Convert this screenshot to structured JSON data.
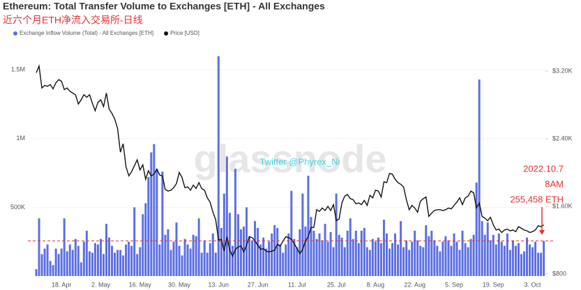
{
  "chart_data": {
    "type": "bar",
    "title": "Ethereum: Total Transfer Volume to Exchanges [ETH] - All Exchanges",
    "subtitle": "近六个月ETH净流入交易所-日线",
    "watermark": "glassnode",
    "credit": "Twitter @Phyrex_Ni",
    "annotation": {
      "lines": [
        "2022.10.7",
        "8AM",
        "255,458 ETH"
      ],
      "color": "#e8312f"
    },
    "x": [
      null,
      null,
      null,
      null,
      null,
      null,
      null,
      null,
      null,
      "18. Apr",
      null,
      null,
      null,
      null,
      null,
      null,
      null,
      null,
      null,
      null,
      null,
      null,
      null,
      "2. May",
      null,
      null,
      null,
      null,
      null,
      null,
      null,
      null,
      null,
      null,
      null,
      null,
      null,
      "16. May",
      null,
      null,
      null,
      null,
      null,
      null,
      null,
      null,
      null,
      null,
      null,
      null,
      null,
      "30. May",
      null,
      null,
      null,
      null,
      null,
      null,
      null,
      null,
      null,
      null,
      null,
      null,
      null,
      "13. Jun",
      null,
      null,
      null,
      null,
      null,
      null,
      null,
      null,
      null,
      null,
      null,
      null,
      null,
      "27. Jun",
      null,
      null,
      null,
      null,
      null,
      null,
      null,
      null,
      null,
      null,
      null,
      null,
      null,
      "11. Jul",
      null,
      null,
      null,
      null,
      null,
      null,
      null,
      null,
      null,
      null,
      null,
      null,
      null,
      "25. Jul",
      null,
      null,
      null,
      null,
      null,
      null,
      null,
      null,
      null,
      null,
      null,
      null,
      null,
      "8. Aug",
      null,
      null,
      null,
      null,
      null,
      null,
      null,
      null,
      null,
      null,
      null,
      null,
      null,
      "22. Aug",
      null,
      null,
      null,
      null,
      null,
      null,
      null,
      null,
      null,
      null,
      null,
      null,
      null,
      "5. Sep",
      null,
      null,
      null,
      null,
      null,
      null,
      null,
      null,
      null,
      null,
      null,
      null,
      null,
      "19. Sep",
      null,
      null,
      null,
      null,
      null,
      null,
      null,
      null,
      null,
      null,
      null,
      null,
      null,
      "3. Oct",
      null,
      null,
      null,
      null
    ],
    "series": [
      {
        "name": "Exchange Inflow Volume (Total) - All Exchanges [ETH]",
        "type": "bar",
        "color": "#5d6fe3",
        "values": [
          50000,
          420000,
          160000,
          200000,
          230000,
          110000,
          80000,
          200000,
          160000,
          200000,
          420000,
          180000,
          230000,
          190000,
          270000,
          220000,
          100000,
          250000,
          330000,
          180000,
          170000,
          240000,
          230000,
          270000,
          160000,
          380000,
          280000,
          220000,
          170000,
          190000,
          190000,
          150000,
          230000,
          250000,
          220000,
          500000,
          160000,
          210000,
          450000,
          530000,
          720000,
          900000,
          960000,
          780000,
          230000,
          760000,
          300000,
          340000,
          190000,
          250000,
          390000,
          220000,
          150000,
          270000,
          230000,
          200000,
          300000,
          290000,
          420000,
          170000,
          260000,
          170000,
          240000,
          310000,
          170000,
          1600000,
          350000,
          600000,
          870000,
          460000,
          220000,
          780000,
          450000,
          340000,
          360000,
          500000,
          290000,
          260000,
          400000,
          350000,
          230000,
          280000,
          200000,
          250000,
          310000,
          370000,
          350000,
          230000,
          170000,
          230000,
          310000,
          620000,
          270000,
          210000,
          340000,
          600000,
          360000,
          730000,
          430000,
          330000,
          270000,
          310000,
          260000,
          380000,
          250000,
          320000,
          210000,
          600000,
          300000,
          280000,
          210000,
          330000,
          420000,
          270000,
          330000,
          240000,
          330000,
          350000,
          210000,
          190000,
          270000,
          250000,
          280000,
          240000,
          410000,
          310000,
          200000,
          240000,
          310000,
          230000,
          400000,
          210000,
          260000,
          190000,
          250000,
          330000,
          260000,
          220000,
          210000,
          370000,
          290000,
          330000,
          260000,
          220000,
          180000,
          250000,
          290000,
          260000,
          220000,
          310000,
          250000,
          190000,
          330000,
          240000,
          210000,
          270000,
          300000,
          680000,
          1430000,
          400000,
          300000,
          390000,
          260000,
          300000,
          230000,
          310000,
          250000,
          220000,
          310000,
          190000,
          260000,
          220000,
          240000,
          160000,
          180000,
          280000,
          230000,
          210000,
          250000,
          170000,
          170000,
          255458
        ]
      },
      {
        "name": "Price [USD]",
        "type": "line",
        "axis": "y2",
        "color": "#111111",
        "values": [
          3180,
          3260,
          3000,
          3030,
          3020,
          3040,
          2990,
          3060,
          3100,
          3080,
          2980,
          3000,
          2960,
          2940,
          2920,
          2810,
          2860,
          2920,
          2890,
          2920,
          2820,
          2730,
          2830,
          2860,
          2780,
          2940,
          2750,
          2700,
          2630,
          2520,
          2240,
          2340,
          2070,
          1960,
          2010,
          2080,
          2150,
          2030,
          2090,
          1920,
          2020,
          1960,
          1980,
          2040,
          1970,
          1960,
          1800,
          1780,
          1790,
          1820,
          1870,
          2000,
          1940,
          1820,
          1830,
          1790,
          1850,
          1810,
          1880,
          1810,
          1790,
          1700,
          1650,
          1530,
          1440,
          1200,
          1210,
          1070,
          1240,
          1080,
          1010,
          1090,
          1120,
          1130,
          1060,
          1140,
          1240,
          1230,
          1190,
          1140,
          1090,
          1100,
          1070,
          1060,
          1070,
          1080,
          1150,
          1130,
          1190,
          1240,
          1230,
          1210,
          1160,
          1100,
          1040,
          1090,
          1190,
          1240,
          1350,
          1350,
          1560,
          1540,
          1580,
          1550,
          1600,
          1550,
          1620,
          1430,
          1450,
          1640,
          1720,
          1740,
          1690,
          1680,
          1630,
          1640,
          1620,
          1670,
          1610,
          1730,
          1700,
          1790,
          1780,
          1710,
          1890,
          1880,
          1990,
          1980,
          1920,
          1880,
          1860,
          1830,
          1680,
          1560,
          1610,
          1580,
          1530,
          1660,
          1690,
          1710,
          1480,
          1520,
          1550,
          1560,
          1560,
          1550,
          1560,
          1580,
          1570,
          1610,
          1650,
          1700,
          1620,
          1700,
          1720,
          1780,
          1760,
          1580,
          1640,
          1480,
          1460,
          1430,
          1470,
          1380,
          1320,
          1330,
          1290,
          1320,
          1330,
          1310,
          1320,
          1300,
          1360,
          1340,
          1320,
          1310,
          1290,
          1300,
          1320,
          1370,
          1360,
          1380
        ]
      }
    ],
    "ylim": [
      0,
      1750000
    ],
    "yticks": [
      {
        "value": 500000,
        "label": "500K"
      },
      {
        "value": 1000000,
        "label": "1M"
      },
      {
        "value": 1500000,
        "label": "1.5M"
      }
    ],
    "y2lim": [
      775,
      3620
    ],
    "y2ticks": [
      {
        "value": 800,
        "label": "$800"
      },
      {
        "value": 1600,
        "label": "$1.60K"
      },
      {
        "value": 2400,
        "label": "$2.40K"
      },
      {
        "value": 3200,
        "label": "$3.20K"
      }
    ],
    "grid": true
  }
}
